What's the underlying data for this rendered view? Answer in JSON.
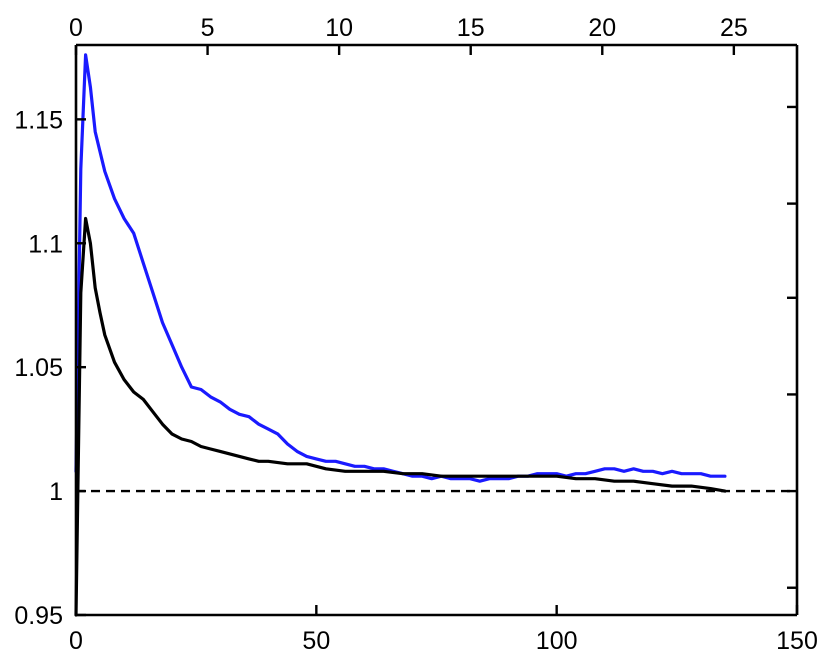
{
  "chart_data": {
    "type": "line",
    "title": "",
    "xlabel": "",
    "ylabel": "",
    "xlim": [
      0,
      150
    ],
    "ylim": [
      0.95,
      1.18
    ],
    "xticks": [
      0,
      50,
      100,
      150
    ],
    "xtick_labels": [
      "0",
      "50",
      "100",
      "150"
    ],
    "yticks": [
      0.95,
      1,
      1.05,
      1.1,
      1.15
    ],
    "ytick_labels": [
      "0.95",
      "1",
      "1.05",
      "1.1",
      "1.15"
    ],
    "top_axis": {
      "xlim": [
        0,
        27.4
      ],
      "xticks": [
        0,
        5,
        10,
        15,
        20,
        25
      ],
      "xtick_labels": [
        "0",
        "5",
        "10",
        "15",
        "20",
        "25"
      ]
    },
    "right_axis_unlabeled_ticks": [
      0.961,
      1.0,
      1.039,
      1.078,
      1.116,
      1.155
    ],
    "grid": false,
    "legend": "none",
    "reference_line": {
      "y": 1.0,
      "style": "dashed",
      "color": "#000000"
    },
    "series": [
      {
        "color": "#1a1aff",
        "x": [
          0,
          1,
          2,
          3,
          4,
          5,
          6,
          8,
          10,
          12,
          14,
          16,
          18,
          20,
          22,
          24,
          26,
          28,
          30,
          32,
          34,
          36,
          38,
          40,
          42,
          44,
          46,
          48,
          50,
          52,
          54,
          56,
          58,
          60,
          62,
          64,
          66,
          68,
          70,
          72,
          74,
          76,
          78,
          80,
          82,
          84,
          86,
          88,
          90,
          92,
          94,
          96,
          98,
          100,
          102,
          104,
          106,
          108,
          110,
          112,
          114,
          116,
          118,
          120,
          122,
          124,
          126,
          128,
          130,
          132,
          134,
          135
        ],
        "y": [
          1.008,
          1.13,
          1.176,
          1.163,
          1.145,
          1.137,
          1.129,
          1.118,
          1.11,
          1.104,
          1.092,
          1.08,
          1.068,
          1.059,
          1.05,
          1.042,
          1.041,
          1.038,
          1.036,
          1.033,
          1.031,
          1.03,
          1.027,
          1.025,
          1.023,
          1.019,
          1.016,
          1.014,
          1.013,
          1.012,
          1.012,
          1.011,
          1.01,
          1.01,
          1.009,
          1.009,
          1.008,
          1.007,
          1.006,
          1.006,
          1.005,
          1.006,
          1.005,
          1.005,
          1.005,
          1.004,
          1.005,
          1.005,
          1.005,
          1.006,
          1.006,
          1.007,
          1.007,
          1.007,
          1.006,
          1.007,
          1.007,
          1.008,
          1.009,
          1.009,
          1.008,
          1.009,
          1.008,
          1.008,
          1.007,
          1.008,
          1.007,
          1.007,
          1.007,
          1.006,
          1.006,
          1.006
        ]
      },
      {
        "color": "#000000",
        "x": [
          0,
          1,
          2,
          3,
          4,
          5,
          6,
          8,
          10,
          12,
          14,
          16,
          18,
          20,
          22,
          24,
          26,
          28,
          30,
          32,
          34,
          36,
          38,
          40,
          44,
          48,
          50,
          52,
          56,
          60,
          64,
          68,
          72,
          76,
          80,
          84,
          88,
          92,
          96,
          100,
          104,
          108,
          112,
          116,
          120,
          124,
          128,
          132,
          135
        ],
        "y": [
          0.95,
          1.08,
          1.11,
          1.1,
          1.082,
          1.072,
          1.063,
          1.052,
          1.045,
          1.04,
          1.037,
          1.032,
          1.027,
          1.023,
          1.021,
          1.02,
          1.018,
          1.017,
          1.016,
          1.015,
          1.014,
          1.013,
          1.012,
          1.012,
          1.011,
          1.011,
          1.01,
          1.009,
          1.008,
          1.008,
          1.008,
          1.007,
          1.007,
          1.006,
          1.006,
          1.006,
          1.006,
          1.006,
          1.006,
          1.006,
          1.005,
          1.005,
          1.004,
          1.004,
          1.003,
          1.002,
          1.002,
          1.001,
          1.0
        ]
      }
    ]
  }
}
